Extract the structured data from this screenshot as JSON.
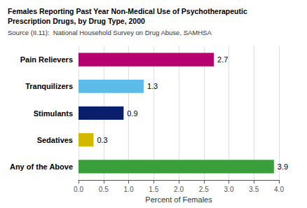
{
  "chart_data": {
    "type": "bar",
    "orientation": "horizontal",
    "title": "Females Reporting Past Year Non-Medical Use of Psychotherapeutic\nPrescription Drugs, by Drug Type, 2000",
    "subtitle": "Source (II.11):  National Household Survey on Drug Abuse, SAMHSA",
    "categories": [
      "Pain Relievers",
      "Tranquilizers",
      "Stimulants",
      "Sedatives",
      "Any of the Above"
    ],
    "values": [
      2.7,
      1.3,
      0.9,
      0.3,
      3.9
    ],
    "colors": [
      "#b5006e",
      "#5bbce8",
      "#0a1f6b",
      "#d4b800",
      "#3a9e3a"
    ],
    "xlabel": "Percent of Females",
    "xlim": [
      0,
      4.0
    ],
    "xticks": [
      {
        "value": 0,
        "label": "0.0"
      },
      0.5,
      {
        "value": 1,
        "label": "1.0"
      },
      1.5,
      {
        "value": 2,
        "label": "2.0"
      },
      2.5,
      {
        "value": 3,
        "label": "3.0"
      },
      3.5,
      {
        "value": 4,
        "label": "4.0"
      }
    ],
    "grid": true,
    "data_labels": true
  }
}
